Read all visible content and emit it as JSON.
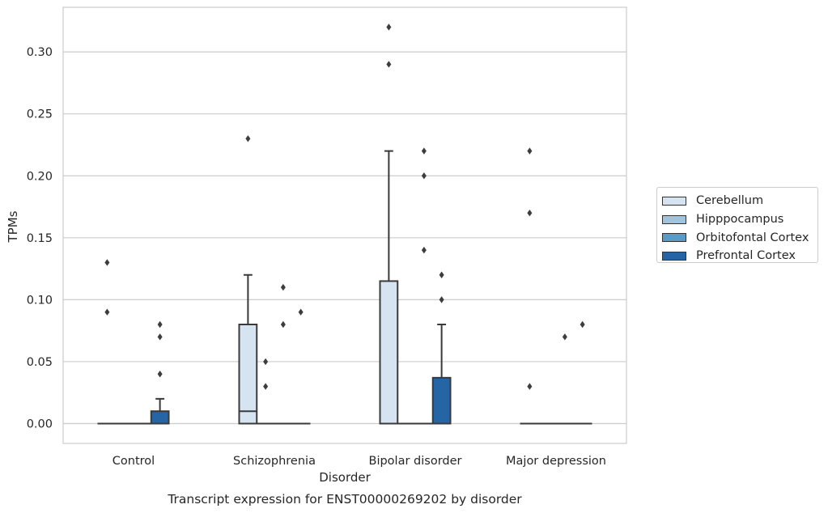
{
  "chart_data": {
    "type": "boxplot",
    "caption": "Transcript expression for ENST00000269202 by disorder",
    "xlabel": "Disorder",
    "ylabel": "TPMs",
    "ylim": [
      -0.016,
      0.336
    ],
    "yticks": [
      "0.00",
      "0.05",
      "0.10",
      "0.15",
      "0.20",
      "0.25",
      "0.30"
    ],
    "grid": true,
    "legend_position": "right",
    "categories": [
      "Control",
      "Schizophrenia",
      "Bipolar disorder",
      "Major depression"
    ],
    "series": [
      {
        "name": "Cerebellum",
        "color": "#d6e4f2",
        "boxes": [
          {
            "q1": 0,
            "median": 0,
            "q3": 0,
            "whisker_low": 0,
            "whisker_high": 0,
            "outliers": [
              0.09,
              0.13
            ]
          },
          {
            "q1": 0,
            "median": 0.01,
            "q3": 0.08,
            "whisker_low": 0,
            "whisker_high": 0.12,
            "outliers": [
              0.23
            ]
          },
          {
            "q1": 0,
            "median": 0,
            "q3": 0.115,
            "whisker_low": 0,
            "whisker_high": 0.22,
            "outliers": [
              0.29,
              0.32
            ]
          },
          {
            "q1": 0,
            "median": 0,
            "q3": 0,
            "whisker_low": 0,
            "whisker_high": 0,
            "outliers": [
              0.03,
              0.17,
              0.22
            ]
          }
        ]
      },
      {
        "name": "Hipppocampus",
        "color": "#a1c4de",
        "boxes": [
          {
            "q1": 0,
            "median": 0,
            "q3": 0,
            "whisker_low": 0,
            "whisker_high": 0,
            "outliers": []
          },
          {
            "q1": 0,
            "median": 0,
            "q3": 0,
            "whisker_low": 0,
            "whisker_high": 0,
            "outliers": [
              0.03,
              0.05
            ]
          },
          {
            "q1": 0,
            "median": 0,
            "q3": 0,
            "whisker_low": 0,
            "whisker_high": 0,
            "outliers": []
          },
          {
            "q1": 0,
            "median": 0,
            "q3": 0,
            "whisker_low": 0,
            "whisker_high": 0,
            "outliers": []
          }
        ]
      },
      {
        "name": "Orbitofontal Cortex",
        "color": "#5a9ac7",
        "boxes": [
          {
            "q1": 0,
            "median": 0,
            "q3": 0,
            "whisker_low": 0,
            "whisker_high": 0,
            "outliers": []
          },
          {
            "q1": 0,
            "median": 0,
            "q3": 0,
            "whisker_low": 0,
            "whisker_high": 0,
            "outliers": [
              0.08,
              0.11
            ]
          },
          {
            "q1": 0,
            "median": 0,
            "q3": 0,
            "whisker_low": 0,
            "whisker_high": 0,
            "outliers": [
              0.14,
              0.2,
              0.22
            ]
          },
          {
            "q1": 0,
            "median": 0,
            "q3": 0,
            "whisker_low": 0,
            "whisker_high": 0,
            "outliers": [
              0.07
            ]
          }
        ]
      },
      {
        "name": "Prefrontal Cortex",
        "color": "#2565a6",
        "boxes": [
          {
            "q1": 0,
            "median": 0,
            "q3": 0.01,
            "whisker_low": 0,
            "whisker_high": 0.02,
            "outliers": [
              0.04,
              0.07,
              0.08
            ]
          },
          {
            "q1": 0,
            "median": 0,
            "q3": 0,
            "whisker_low": 0,
            "whisker_high": 0,
            "outliers": [
              0.09
            ]
          },
          {
            "q1": 0,
            "median": 0,
            "q3": 0.037,
            "whisker_low": 0,
            "whisker_high": 0.08,
            "outliers": [
              0.1,
              0.12
            ]
          },
          {
            "q1": 0,
            "median": 0,
            "q3": 0,
            "whisker_low": 0,
            "whisker_high": 0,
            "outliers": [
              0.08
            ]
          }
        ]
      }
    ]
  }
}
